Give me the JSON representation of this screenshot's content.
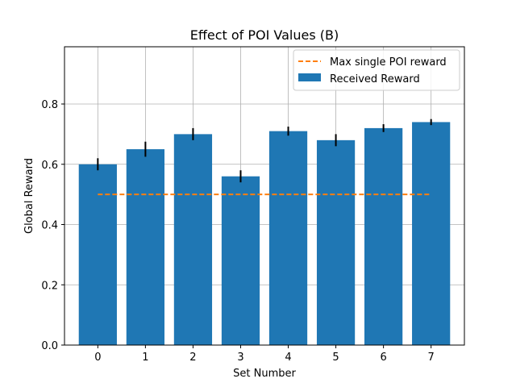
{
  "chart_data": {
    "type": "bar",
    "title": "Effect of POI Values (B)",
    "xlabel": "Set Number",
    "ylabel": "Global Reward",
    "categories": [
      "0",
      "1",
      "2",
      "3",
      "4",
      "5",
      "6",
      "7"
    ],
    "series": [
      {
        "name": "Received Reward",
        "type": "bar",
        "values": [
          0.6,
          0.65,
          0.7,
          0.56,
          0.71,
          0.68,
          0.72,
          0.74
        ],
        "errors": [
          0.02,
          0.025,
          0.02,
          0.02,
          0.015,
          0.02,
          0.013,
          0.01
        ],
        "color": "#1f77b4"
      },
      {
        "name": "Max single POI reward",
        "type": "line",
        "style": "dashed",
        "x_range": [
          0,
          7
        ],
        "value": 0.5,
        "color": "#ff7f0e"
      }
    ],
    "ylim": [
      0,
      0.99
    ],
    "yticks": [
      "0.0",
      "0.2",
      "0.4",
      "0.6",
      "0.8"
    ],
    "ytick_values": [
      0,
      0.2,
      0.4,
      0.6,
      0.8
    ],
    "xlim": [
      -0.7,
      7.7
    ],
    "grid": true,
    "legend_position": "top-right",
    "error_color": "#000000"
  }
}
